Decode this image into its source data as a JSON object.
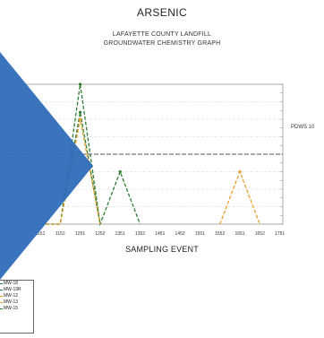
{
  "title": "ARSENIC",
  "subtitle_line1": "LAFAYETTE COUNTY LANDFILL",
  "subtitle_line2": "GROUNDWATER CHEMISTRY GRAPH",
  "reference_label": "PDWS 10",
  "colors": {
    "green": "#2e7d32",
    "orange": "#e8a030",
    "reference_line": "#555555",
    "overlay": "#2f6db8"
  },
  "chart_data": {
    "type": "line",
    "xlabel": "SAMPLING EVENT",
    "title": "ARSENIC",
    "categories": [
      "1151",
      "1152",
      "1251",
      "1252",
      "1351",
      "1352",
      "1451",
      "1452",
      "1551",
      "1552",
      "1651",
      "1652",
      "1751"
    ],
    "reference_value": 10,
    "ylim": [
      0,
      20
    ],
    "grid": true,
    "legend_position": "bottom-left",
    "series": [
      {
        "name": "MW-18",
        "color": "#2e7d32",
        "values": [
          0,
          0,
          20,
          0,
          7.5,
          0,
          null,
          null,
          null,
          null,
          null,
          null,
          null
        ]
      },
      {
        "name": "MW-19R",
        "color": "#2e7d32",
        "values": [
          0,
          0,
          16,
          0,
          null,
          null,
          null,
          null,
          null,
          null,
          null,
          null,
          null
        ]
      },
      {
        "name": "MW-12",
        "color": "#e8a030",
        "values": [
          0,
          0,
          15,
          0,
          null,
          null,
          null,
          null,
          null,
          0,
          7.5,
          0,
          null
        ]
      },
      {
        "name": "MW-13",
        "color": "#e8a030",
        "values": [
          null,
          null,
          null,
          null,
          null,
          null,
          null,
          null,
          null,
          null,
          null,
          null,
          null
        ]
      },
      {
        "name": "MW-15",
        "color": "#2e7d32",
        "values": [
          null,
          null,
          null,
          null,
          null,
          null,
          null,
          null,
          null,
          null,
          null,
          null,
          null
        ]
      }
    ]
  },
  "legend": [
    "MW-18",
    "MW-19R",
    "MW-12",
    "MW-13",
    "MW-15"
  ]
}
